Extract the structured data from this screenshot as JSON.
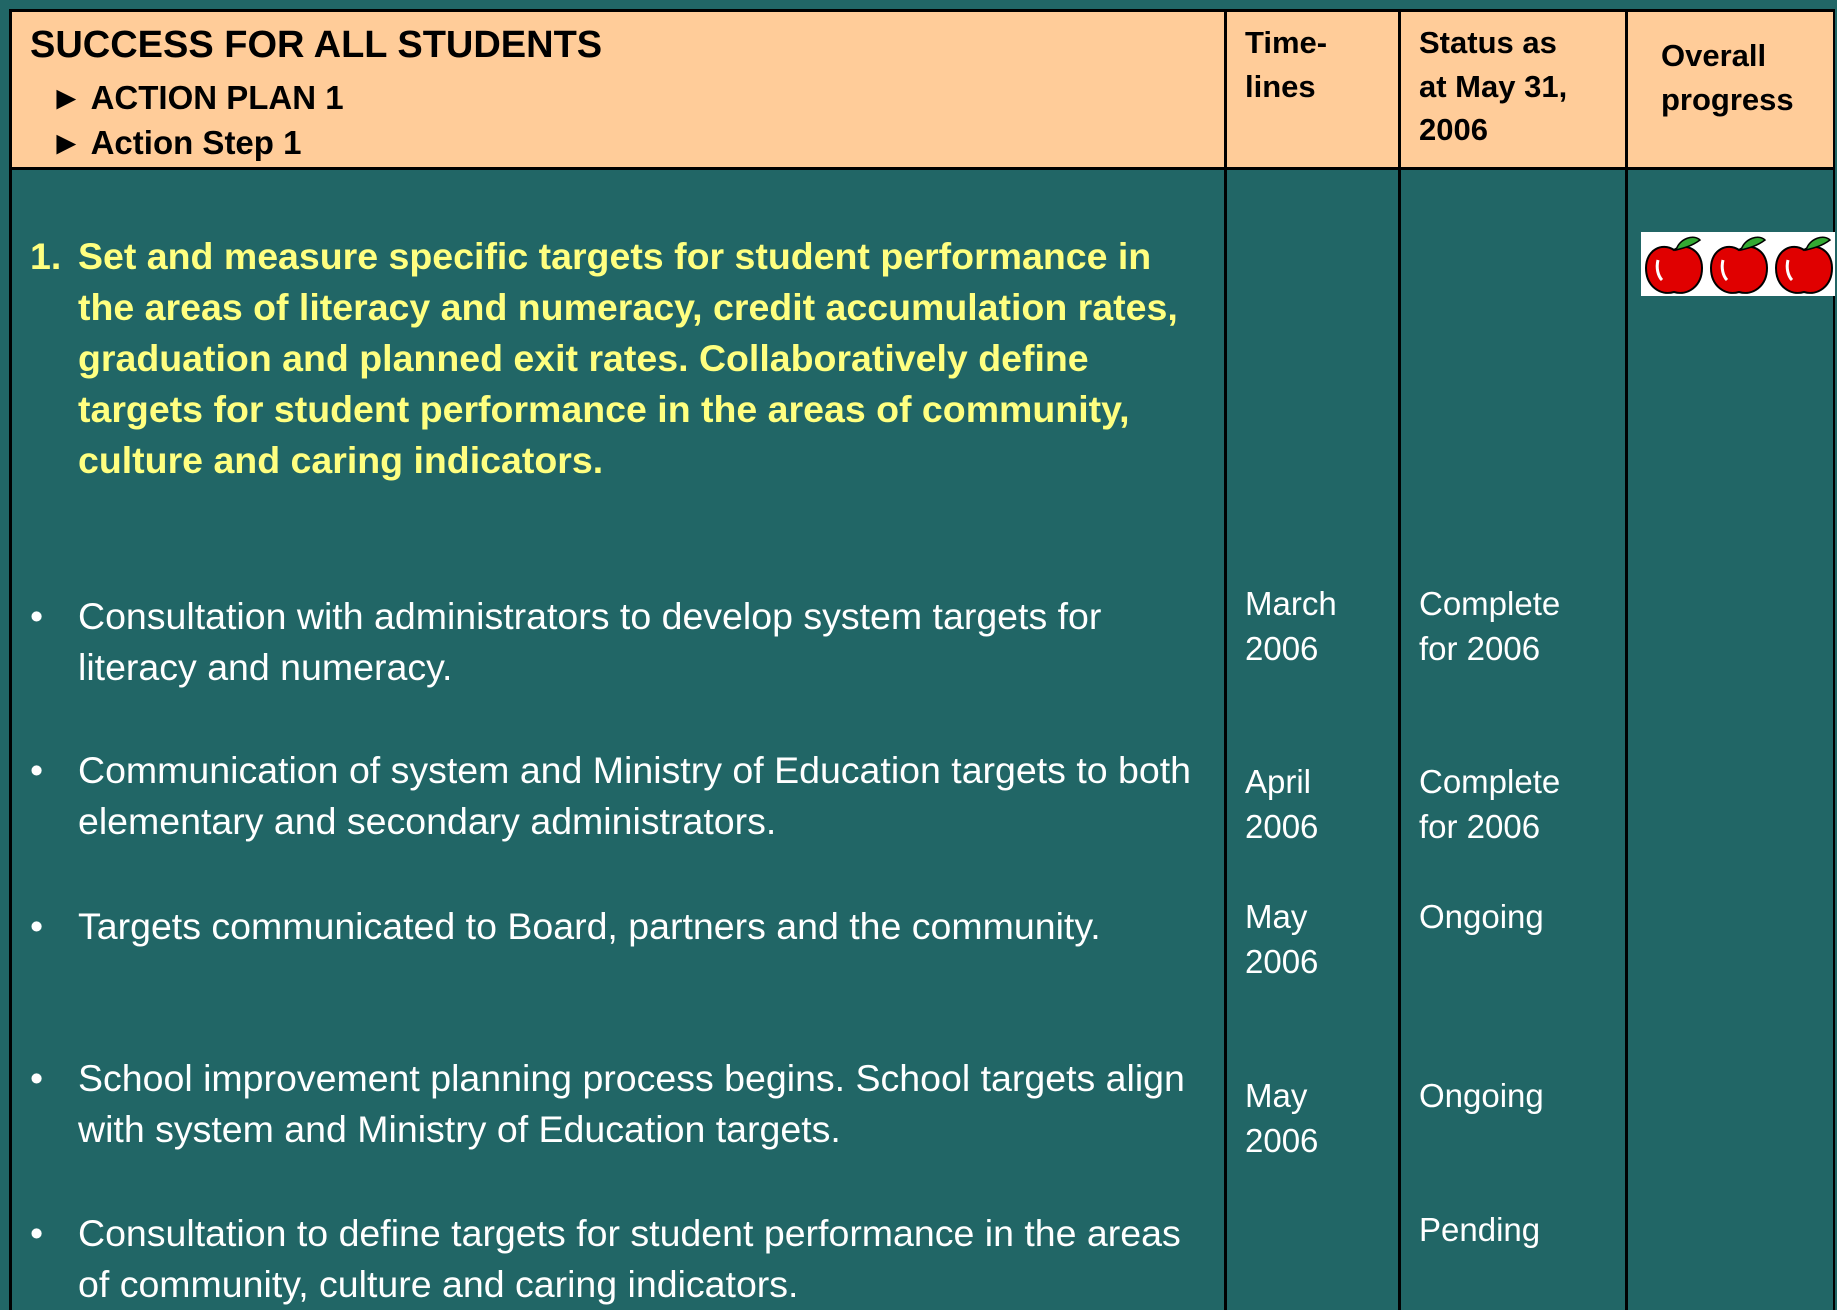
{
  "header": {
    "title": "SUCCESS FOR ALL STUDENTS",
    "items": [
      "► ACTION PLAN 1",
      "► Action Step 1"
    ],
    "columns": [
      [
        "Time-",
        "lines"
      ],
      [
        "Status as",
        "at May 31,",
        "2006"
      ],
      [
        "Overall",
        "progress"
      ]
    ]
  },
  "objective": {
    "number": "1.",
    "text": "Set and measure specific targets for student performance in the areas of literacy and numeracy, credit accumulation rates, graduation and planned exit rates. Collaboratively define targets for student performance in the areas of community, culture and caring indicators."
  },
  "rows": [
    {
      "bullet": "•",
      "text": "Consultation with administrators to develop system targets for literacy and numeracy.",
      "timeline": [
        "March",
        "2006"
      ],
      "status": [
        "Complete",
        "for 2006"
      ]
    },
    {
      "bullet": "•",
      "text": "Communication of system and Ministry of Education targets to both elementary and secondary administrators.",
      "timeline": [
        "April",
        "2006"
      ],
      "status": [
        "Complete",
        "for 2006"
      ]
    },
    {
      "bullet": "•",
      "text": "Targets communicated to Board, partners and the community.",
      "timeline": [
        "May",
        "2006"
      ],
      "status": [
        "Ongoing"
      ]
    },
    {
      "bullet": "•",
      "text": "School improvement planning process begins. School targets align with system and Ministry of Education targets.",
      "timeline": [
        "May",
        "2006"
      ],
      "status": [
        "Ongoing"
      ]
    },
    {
      "bullet": "•",
      "text": "Consultation to define targets for student performance in the areas of community, culture and caring indicators.",
      "timeline": [],
      "status": [
        "Pending"
      ]
    }
  ]
}
